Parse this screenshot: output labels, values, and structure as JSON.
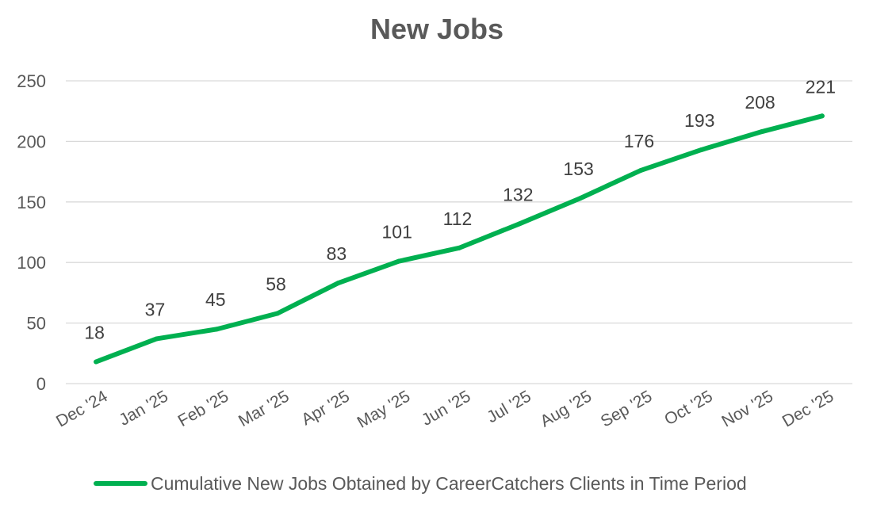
{
  "chart_data": {
    "type": "line",
    "title": "New Jobs",
    "xlabel": "",
    "ylabel": "",
    "categories": [
      "Dec '24",
      "Jan '25",
      "Feb '25",
      "Mar '25",
      "Apr '25",
      "May '25",
      "Jun '25",
      "Jul '25",
      "Aug '25",
      "Sep '25",
      "Oct '25",
      "Nov '25",
      "Dec '25"
    ],
    "series": [
      {
        "name": "Cumulative New Jobs Obtained by CareerCatchers Clients in Time Period",
        "values": [
          18,
          37,
          45,
          58,
          83,
          101,
          112,
          132,
          153,
          176,
          193,
          208,
          221
        ],
        "color": "#00b050"
      }
    ],
    "ylim": [
      0,
      250
    ],
    "yticks": [
      0,
      50,
      100,
      150,
      200,
      250
    ],
    "grid": true,
    "data_labels": true,
    "legend_position": "bottom"
  }
}
